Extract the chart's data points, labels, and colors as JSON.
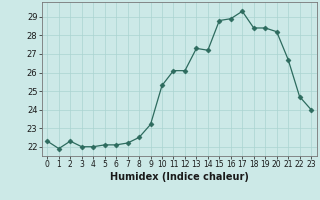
{
  "x": [
    0,
    1,
    2,
    3,
    4,
    5,
    6,
    7,
    8,
    9,
    10,
    11,
    12,
    13,
    14,
    15,
    16,
    17,
    18,
    19,
    20,
    21,
    22,
    23
  ],
  "y": [
    22.3,
    21.9,
    22.3,
    22.0,
    22.0,
    22.1,
    22.1,
    22.2,
    22.5,
    23.2,
    25.3,
    26.1,
    26.1,
    27.3,
    27.2,
    28.8,
    28.9,
    29.3,
    28.4,
    28.4,
    28.2,
    26.7,
    24.7,
    24.0
  ],
  "xlabel": "Humidex (Indice chaleur)",
  "line_color": "#2d6b5e",
  "marker": "D",
  "marker_size": 2.5,
  "bg_color": "#cce9e7",
  "grid_color": "#aad4d1",
  "tick_label_color": "#1a1a1a",
  "ylim": [
    21.5,
    29.8
  ],
  "yticks": [
    22,
    23,
    24,
    25,
    26,
    27,
    28,
    29
  ],
  "fig_bg": "#cce9e7"
}
